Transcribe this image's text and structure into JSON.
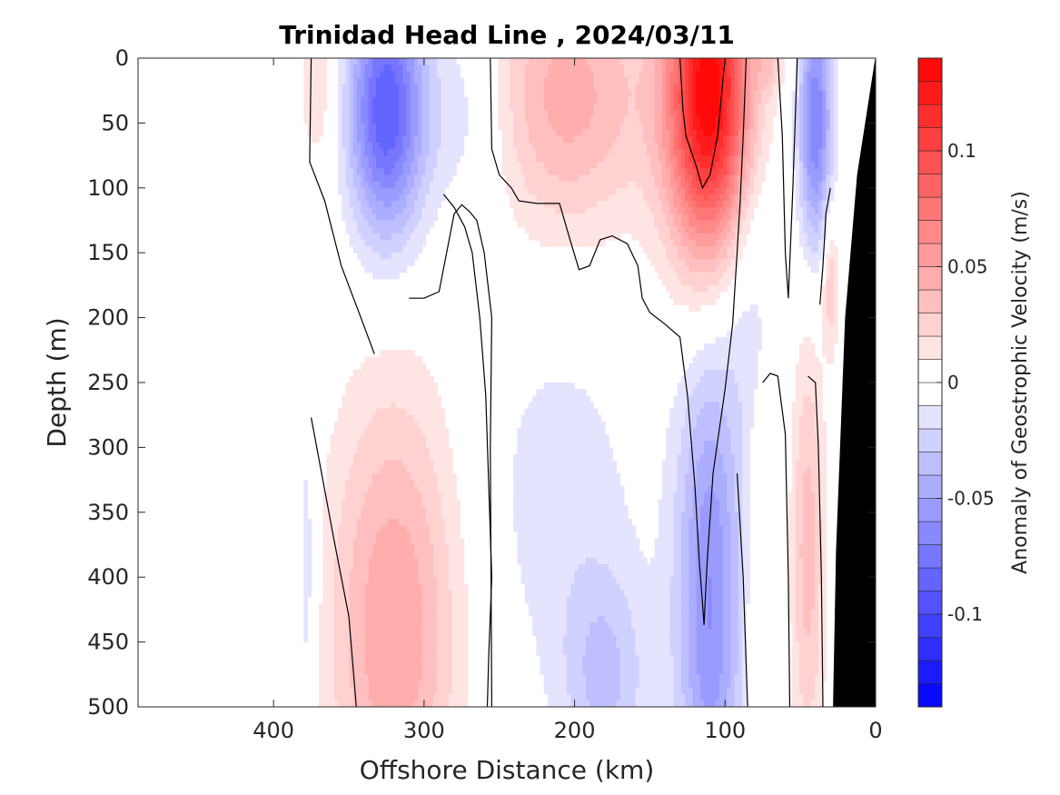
{
  "chart_data": {
    "type": "heatmap",
    "subtype": "filled-contour section",
    "title": "Trinidad Head Line , 2024/03/11",
    "xlabel": "Offshore Distance (km)",
    "ylabel": "Depth (m)",
    "xlim": [
      490,
      0
    ],
    "x_direction": "reversed",
    "ylim": [
      0,
      500
    ],
    "y_direction": "reversed",
    "xticks": [
      {
        "value": 400,
        "label": "400"
      },
      {
        "value": 300,
        "label": "300"
      },
      {
        "value": 200,
        "label": "200"
      },
      {
        "value": 100,
        "label": "100"
      },
      {
        "value": 0,
        "label": "0"
      }
    ],
    "yticks": [
      {
        "value": 0,
        "label": "0"
      },
      {
        "value": 50,
        "label": "50"
      },
      {
        "value": 100,
        "label": "100"
      },
      {
        "value": 150,
        "label": "150"
      },
      {
        "value": 200,
        "label": "200"
      },
      {
        "value": 250,
        "label": "250"
      },
      {
        "value": 300,
        "label": "300"
      },
      {
        "value": 350,
        "label": "350"
      },
      {
        "value": 400,
        "label": "400"
      },
      {
        "value": 450,
        "label": "450"
      },
      {
        "value": 500,
        "label": "500"
      }
    ],
    "colorbar": {
      "label": "Anomaly of Geostrophic Velocity (m/s)",
      "clim": [
        -0.14,
        0.14
      ],
      "step": 0.01,
      "ticks": [
        {
          "value": 0.1,
          "label": "0.1"
        },
        {
          "value": 0.05,
          "label": "0.05"
        },
        {
          "value": 0,
          "label": "0"
        },
        {
          "value": -0.05,
          "label": "-0.05"
        },
        {
          "value": -0.1,
          "label": "-0.1"
        }
      ],
      "colormap": "blue-white-red",
      "neg_color": "#0000ff",
      "pos_color": "#ff0000"
    },
    "data_region_x": [
      380,
      0
    ],
    "features": [
      {
        "x": 370,
        "y": 10,
        "sx": 10,
        "sy": 60,
        "v": 0.02
      },
      {
        "x": 325,
        "y": 40,
        "sx": 18,
        "sy": 70,
        "v": -0.09
      },
      {
        "x": 270,
        "y": 40,
        "sx": 22,
        "sy": 60,
        "v": -0.02
      },
      {
        "x": 205,
        "y": 30,
        "sx": 40,
        "sy": 75,
        "v": 0.045
      },
      {
        "x": 110,
        "y": 30,
        "sx": 20,
        "sy": 90,
        "v": 0.14
      },
      {
        "x": 40,
        "y": 50,
        "sx": 8,
        "sy": 70,
        "v": -0.07
      },
      {
        "x": 70,
        "y": 5,
        "sx": 6,
        "sy": 15,
        "v": 0.02
      },
      {
        "x": 85,
        "y": 150,
        "sx": 14,
        "sy": 90,
        "v": -0.02
      },
      {
        "x": 30,
        "y": 170,
        "sx": 4,
        "sy": 40,
        "v": 0.03
      },
      {
        "x": 320,
        "y": 440,
        "sx": 30,
        "sy": 130,
        "v": 0.05
      },
      {
        "x": 210,
        "y": 340,
        "sx": 40,
        "sy": 110,
        "v": -0.015
      },
      {
        "x": 180,
        "y": 480,
        "sx": 20,
        "sy": 60,
        "v": -0.03
      },
      {
        "x": 110,
        "y": 420,
        "sx": 16,
        "sy": 140,
        "v": -0.06
      },
      {
        "x": 78,
        "y": 420,
        "sx": 6,
        "sy": 90,
        "v": 0.015
      },
      {
        "x": 45,
        "y": 380,
        "sx": 8,
        "sy": 120,
        "v": 0.035
      },
      {
        "x": 378,
        "y": 400,
        "sx": 5,
        "sy": 100,
        "v": -0.02
      }
    ],
    "zero_contours": [
      [
        [
          375,
          0
        ],
        [
          376,
          80
        ],
        [
          366,
          110
        ],
        [
          355,
          160
        ],
        [
          342,
          200
        ],
        [
          333,
          228
        ]
      ],
      [
        [
          256,
          0
        ],
        [
          255,
          70
        ],
        [
          250,
          90
        ],
        [
          242,
          100
        ],
        [
          237,
          110
        ],
        [
          225,
          112
        ],
        [
          210,
          112
        ],
        [
          203,
          140
        ],
        [
          197,
          163
        ],
        [
          190,
          160
        ],
        [
          183,
          140
        ],
        [
          175,
          137
        ],
        [
          165,
          143
        ],
        [
          158,
          160
        ],
        [
          155,
          185
        ],
        [
          150,
          196
        ],
        [
          140,
          205
        ],
        [
          130,
          215
        ],
        [
          125,
          260
        ],
        [
          120,
          330
        ],
        [
          117,
          390
        ],
        [
          115,
          420
        ],
        [
          114,
          437
        ],
        [
          112,
          390
        ],
        [
          108,
          320
        ],
        [
          100,
          255
        ],
        [
          95,
          205
        ],
        [
          92,
          150
        ],
        [
          90,
          110
        ],
        [
          88,
          60
        ],
        [
          86,
          0
        ]
      ],
      [
        [
          375,
          277
        ],
        [
          360,
          370
        ],
        [
          350,
          430
        ],
        [
          345,
          500
        ]
      ],
      [
        [
          287,
          105
        ],
        [
          280,
          115
        ],
        [
          273,
          130
        ],
        [
          268,
          150
        ],
        [
          263,
          200
        ],
        [
          259,
          260
        ],
        [
          257,
          330
        ],
        [
          255,
          400
        ],
        [
          257,
          460
        ],
        [
          258,
          500
        ]
      ],
      [
        [
          310,
          185
        ],
        [
          300,
          185
        ],
        [
          290,
          180
        ],
        [
          280,
          120
        ],
        [
          275,
          113
        ],
        [
          270,
          118
        ],
        [
          265,
          125
        ],
        [
          260,
          150
        ],
        [
          255,
          200
        ],
        [
          256,
          300
        ],
        [
          255,
          500
        ]
      ],
      [
        [
          130,
          0
        ],
        [
          128,
          40
        ],
        [
          126,
          60
        ],
        [
          120,
          80
        ],
        [
          115,
          100
        ],
        [
          110,
          90
        ],
        [
          105,
          60
        ],
        [
          100,
          0
        ]
      ],
      [
        [
          75,
          250
        ],
        [
          70,
          243
        ],
        [
          65,
          245
        ],
        [
          60,
          290
        ],
        [
          58,
          400
        ],
        [
          57,
          500
        ]
      ],
      [
        [
          45,
          245
        ],
        [
          40,
          250
        ],
        [
          38,
          300
        ],
        [
          36,
          400
        ],
        [
          35,
          500
        ]
      ],
      [
        [
          65,
          0
        ],
        [
          62,
          60
        ],
        [
          60,
          150
        ],
        [
          58,
          185
        ],
        [
          55,
          100
        ],
        [
          52,
          0
        ]
      ],
      [
        [
          37,
          190
        ],
        [
          35,
          160
        ],
        [
          33,
          120
        ],
        [
          30,
          100
        ]
      ],
      [
        [
          92,
          320
        ],
        [
          88,
          400
        ],
        [
          85,
          500
        ]
      ]
    ],
    "bathymetry": [
      [
        0,
        0
      ],
      [
        -1,
        500
      ],
      [
        28,
        500
      ],
      [
        26,
        380
      ],
      [
        20,
        200
      ],
      [
        12,
        90
      ],
      [
        4,
        30
      ]
    ]
  }
}
